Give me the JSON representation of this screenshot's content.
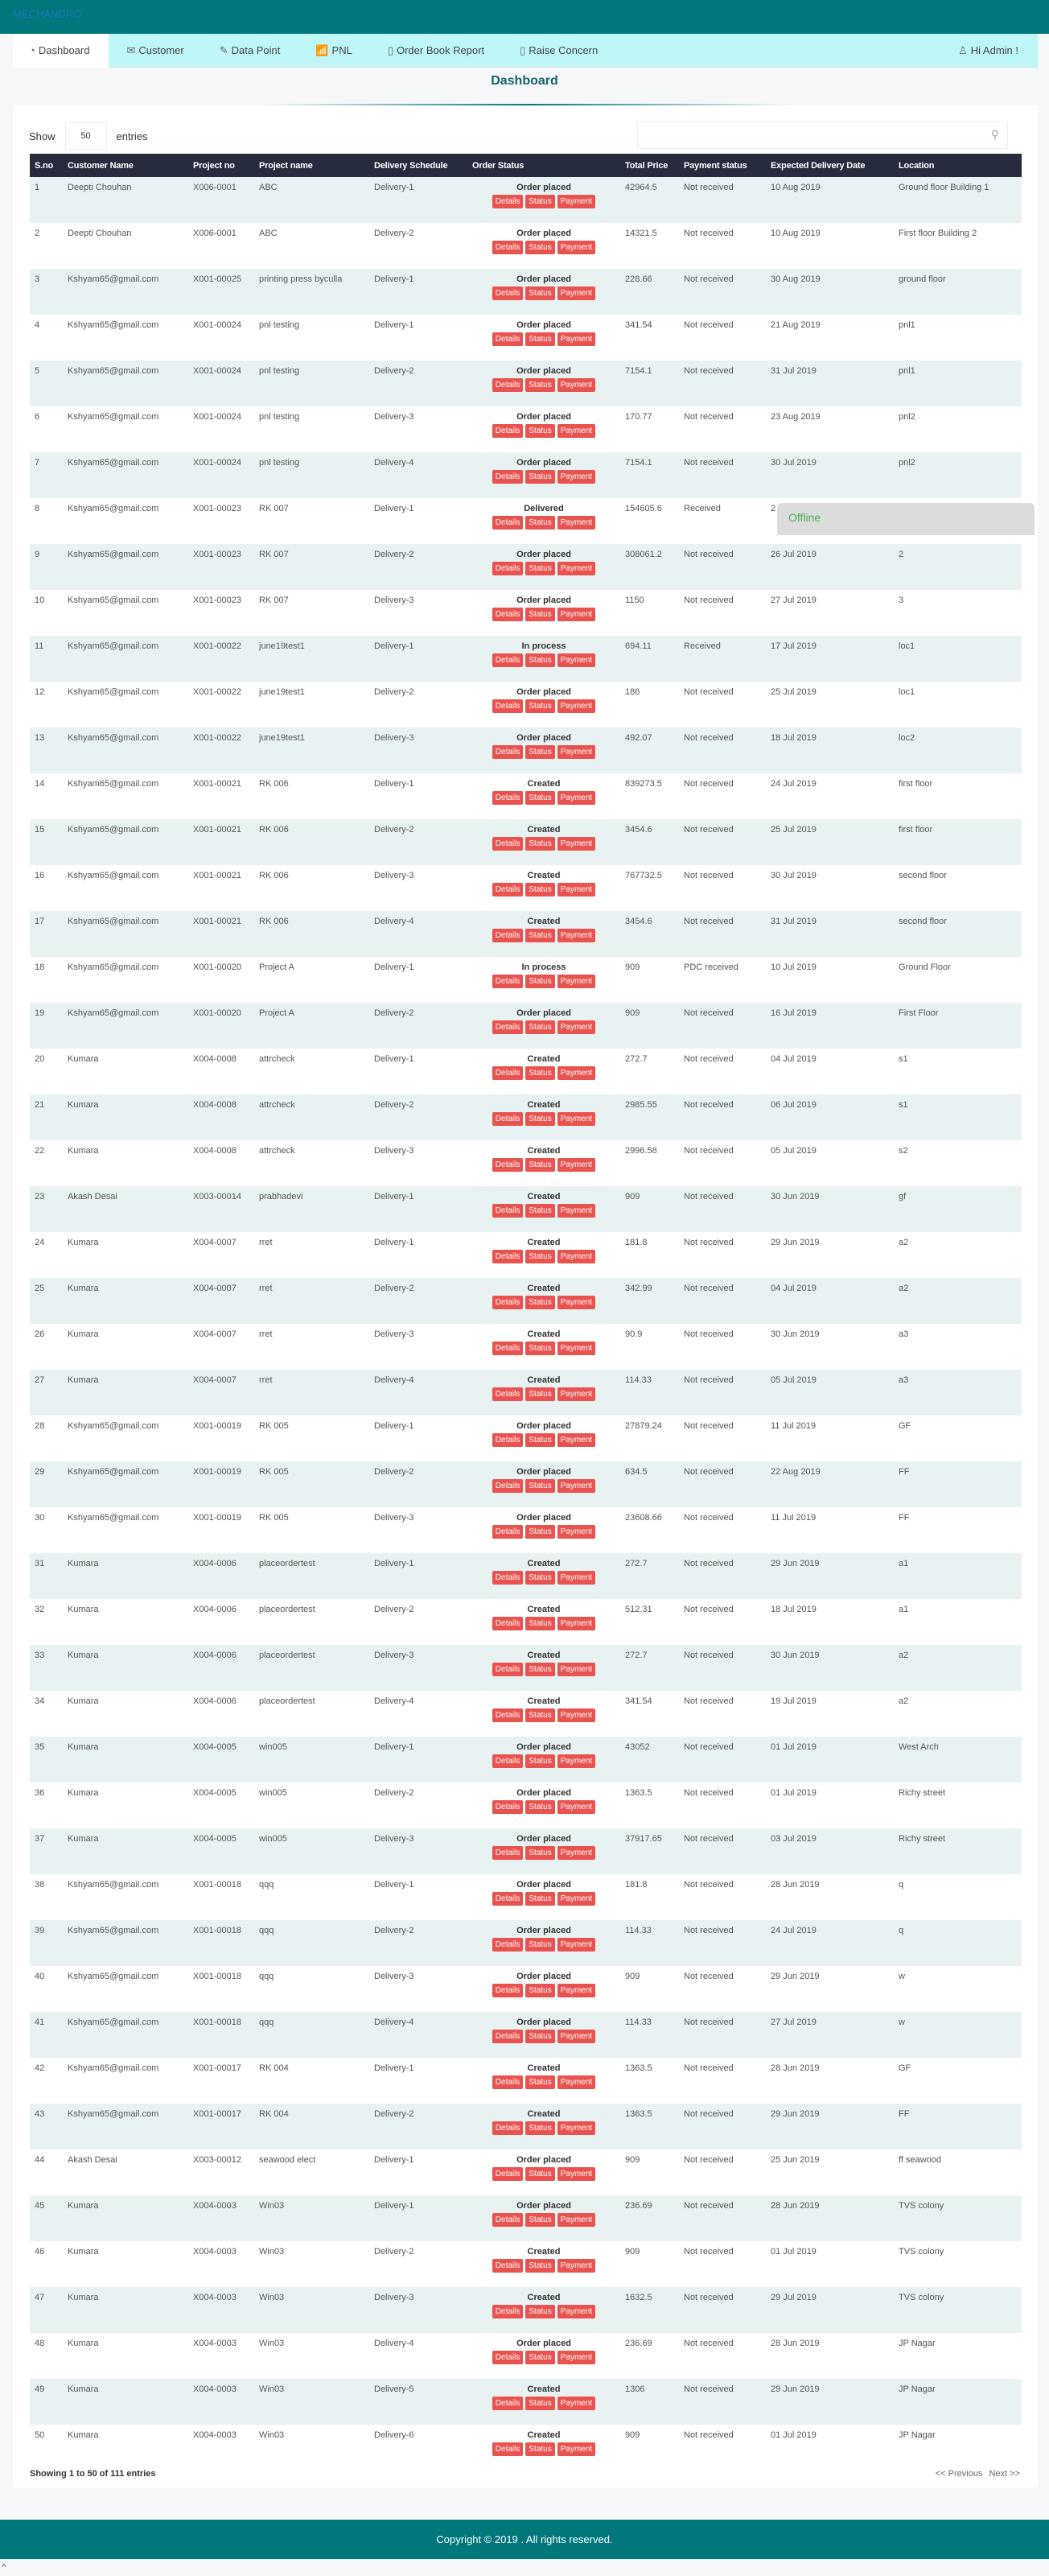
{
  "app": {
    "brand": "MECHANDRO"
  },
  "nav": {
    "items": [
      {
        "label": "Dashboard",
        "icon": "dashboard-icon",
        "glyph": "◔"
      },
      {
        "label": "Customer",
        "icon": "envelope-icon",
        "glyph": "✉"
      },
      {
        "label": "Data Point",
        "icon": "edit-icon",
        "glyph": "✎"
      },
      {
        "label": "PNL",
        "icon": "chart-icon",
        "glyph": "📶"
      },
      {
        "label": "Order Book Report",
        "icon": "book-icon",
        "glyph": "▯"
      },
      {
        "label": "Raise Concern",
        "icon": "book-icon",
        "glyph": "▯"
      }
    ],
    "user": "Hi Admin !"
  },
  "page": {
    "title": "Dashboard"
  },
  "table_controls": {
    "show": "Show",
    "length": "50",
    "entries": "entries",
    "search_placeholder": ""
  },
  "table": {
    "columns": [
      "S.no",
      "Customer Name",
      "Project no",
      "Project name",
      "Delivery Schedule",
      "Order Status",
      "Total Price",
      "Payment status",
      "Expected Delivery Date",
      "Location"
    ],
    "actions": [
      "Details",
      "Status",
      "Payment"
    ],
    "rows": [
      [
        "1",
        "Deepti Chouhan",
        "X006-0001",
        "ABC",
        "Delivery-1",
        "Order placed",
        "42964.5",
        "Not received",
        "10 Aug 2019",
        "Ground floor Building 1"
      ],
      [
        "2",
        "Deepti Chouhan",
        "X006-0001",
        "ABC",
        "Delivery-2",
        "Order placed",
        "14321.5",
        "Not received",
        "10 Aug 2019",
        "First floor Building 2"
      ],
      [
        "3",
        "Kshyam65@gmail.com",
        "X001-00025",
        "printing press byculla",
        "Delivery-1",
        "Order placed",
        "228.66",
        "Not received",
        "30 Aug 2019",
        "ground floor"
      ],
      [
        "4",
        "Kshyam65@gmail.com",
        "X001-00024",
        "pnl testing",
        "Delivery-1",
        "Order placed",
        "341.54",
        "Not received",
        "21 Aug 2019",
        "pnl1"
      ],
      [
        "5",
        "Kshyam65@gmail.com",
        "X001-00024",
        "pnl testing",
        "Delivery-2",
        "Order placed",
        "7154.1",
        "Not received",
        "31 Jul 2019",
        "pnl1"
      ],
      [
        "6",
        "Kshyam65@gmail.com",
        "X001-00024",
        "pnl testing",
        "Delivery-3",
        "Order placed",
        "170.77",
        "Not received",
        "23 Aug 2019",
        "pnl2"
      ],
      [
        "7",
        "Kshyam65@gmail.com",
        "X001-00024",
        "pnl testing",
        "Delivery-4",
        "Order placed",
        "7154.1",
        "Not received",
        "30 Jul 2019",
        "pnl2"
      ],
      [
        "8",
        "Kshyam65@gmail.com",
        "X001-00023",
        "RK 007",
        "Delivery-1",
        "Delivered",
        "154605.6",
        "Received",
        "2",
        ""
      ],
      [
        "9",
        "Kshyam65@gmail.com",
        "X001-00023",
        "RK 007",
        "Delivery-2",
        "Order placed",
        "308061.2",
        "Not received",
        "26 Jul 2019",
        "2"
      ],
      [
        "10",
        "Kshyam65@gmail.com",
        "X001-00023",
        "RK 007",
        "Delivery-3",
        "Order placed",
        "1150",
        "Not received",
        "27 Jul 2019",
        "3"
      ],
      [
        "11",
        "Kshyam65@gmail.com",
        "X001-00022",
        "june19test1",
        "Delivery-1",
        "In process",
        "694.11",
        "Received",
        "17 Jul 2019",
        "loc1"
      ],
      [
        "12",
        "Kshyam65@gmail.com",
        "X001-00022",
        "june19test1",
        "Delivery-2",
        "Order placed",
        "186",
        "Not received",
        "25 Jul 2019",
        "loc1"
      ],
      [
        "13",
        "Kshyam65@gmail.com",
        "X001-00022",
        "june19test1",
        "Delivery-3",
        "Order placed",
        "492.07",
        "Not received",
        "18 Jul 2019",
        "loc2"
      ],
      [
        "14",
        "Kshyam65@gmail.com",
        "X001-00021",
        "RK 006",
        "Delivery-1",
        "Created",
        "839273.5",
        "Not received",
        "24 Jul 2019",
        "first floor"
      ],
      [
        "15",
        "Kshyam65@gmail.com",
        "X001-00021",
        "RK 006",
        "Delivery-2",
        "Created",
        "3454.6",
        "Not received",
        "25 Jul 2019",
        "first floor"
      ],
      [
        "16",
        "Kshyam65@gmail.com",
        "X001-00021",
        "RK 006",
        "Delivery-3",
        "Created",
        "767732.5",
        "Not received",
        "30 Jul 2019",
        "second floor"
      ],
      [
        "17",
        "Kshyam65@gmail.com",
        "X001-00021",
        "RK 006",
        "Delivery-4",
        "Created",
        "3454.6",
        "Not received",
        "31 Jul 2019",
        "second floor"
      ],
      [
        "18",
        "Kshyam65@gmail.com",
        "X001-00020",
        "Project A",
        "Delivery-1",
        "In process",
        "909",
        "PDC received",
        "10 Jul 2019",
        "Ground Floor"
      ],
      [
        "19",
        "Kshyam65@gmail.com",
        "X001-00020",
        "Project A",
        "Delivery-2",
        "Order placed",
        "909",
        "Not received",
        "16 Jul 2019",
        "First Floor"
      ],
      [
        "20",
        "Kumara",
        "X004-0008",
        "attrcheck",
        "Delivery-1",
        "Created",
        "272.7",
        "Not received",
        "04 Jul 2019",
        "s1"
      ],
      [
        "21",
        "Kumara",
        "X004-0008",
        "attrcheck",
        "Delivery-2",
        "Created",
        "2985.55",
        "Not received",
        "06 Jul 2019",
        "s1"
      ],
      [
        "22",
        "Kumara",
        "X004-0008",
        "attrcheck",
        "Delivery-3",
        "Created",
        "2996.58",
        "Not received",
        "05 Jul 2019",
        "s2"
      ],
      [
        "23",
        "Akash Desai",
        "X003-00014",
        "prabhadevi",
        "Delivery-1",
        "Created",
        "909",
        "Not received",
        "30 Jun 2019",
        "gf"
      ],
      [
        "24",
        "Kumara",
        "X004-0007",
        "rret",
        "Delivery-1",
        "Created",
        "181.8",
        "Not received",
        "29 Jun 2019",
        "a2"
      ],
      [
        "25",
        "Kumara",
        "X004-0007",
        "rret",
        "Delivery-2",
        "Created",
        "342.99",
        "Not received",
        "04 Jul 2019",
        "a2"
      ],
      [
        "26",
        "Kumara",
        "X004-0007",
        "rret",
        "Delivery-3",
        "Created",
        "90.9",
        "Not received",
        "30 Jun 2019",
        "a3"
      ],
      [
        "27",
        "Kumara",
        "X004-0007",
        "rret",
        "Delivery-4",
        "Created",
        "114.33",
        "Not received",
        "05 Jul 2019",
        "a3"
      ],
      [
        "28",
        "Kshyam65@gmail.com",
        "X001-00019",
        "RK 005",
        "Delivery-1",
        "Order placed",
        "27879.24",
        "Not received",
        "11 Jul 2019",
        "GF"
      ],
      [
        "29",
        "Kshyam65@gmail.com",
        "X001-00019",
        "RK 005",
        "Delivery-2",
        "Order placed",
        "634.5",
        "Not received",
        "22 Aug 2019",
        "FF"
      ],
      [
        "30",
        "Kshyam65@gmail.com",
        "X001-00019",
        "RK 005",
        "Delivery-3",
        "Order placed",
        "23608.66",
        "Not received",
        "11 Jul 2019",
        "FF"
      ],
      [
        "31",
        "Kumara",
        "X004-0006",
        "placeordertest",
        "Delivery-1",
        "Created",
        "272.7",
        "Not received",
        "29 Jun 2019",
        "a1"
      ],
      [
        "32",
        "Kumara",
        "X004-0006",
        "placeordertest",
        "Delivery-2",
        "Created",
        "512.31",
        "Not received",
        "18 Jul 2019",
        "a1"
      ],
      [
        "33",
        "Kumara",
        "X004-0006",
        "placeordertest",
        "Delivery-3",
        "Created",
        "272.7",
        "Not received",
        "30 Jun 2019",
        "a2"
      ],
      [
        "34",
        "Kumara",
        "X004-0006",
        "placeordertest",
        "Delivery-4",
        "Created",
        "341.54",
        "Not received",
        "19 Jul 2019",
        "a2"
      ],
      [
        "35",
        "Kumara",
        "X004-0005",
        "win005",
        "Delivery-1",
        "Order placed",
        "43052",
        "Not received",
        "01 Jul 2019",
        "West Arch"
      ],
      [
        "36",
        "Kumara",
        "X004-0005",
        "win005",
        "Delivery-2",
        "Order placed",
        "1363.5",
        "Not received",
        "01 Jul 2019",
        "Richy street"
      ],
      [
        "37",
        "Kumara",
        "X004-0005",
        "win005",
        "Delivery-3",
        "Order placed",
        "37917.65",
        "Not received",
        "03 Jul 2019",
        "Richy street"
      ],
      [
        "38",
        "Kshyam65@gmail.com",
        "X001-00018",
        "qqq",
        "Delivery-1",
        "Order placed",
        "181.8",
        "Not received",
        "28 Jun 2019",
        "q"
      ],
      [
        "39",
        "Kshyam65@gmail.com",
        "X001-00018",
        "qqq",
        "Delivery-2",
        "Order placed",
        "114.33",
        "Not received",
        "24 Jul 2019",
        "q"
      ],
      [
        "40",
        "Kshyam65@gmail.com",
        "X001-00018",
        "qqq",
        "Delivery-3",
        "Order placed",
        "909",
        "Not received",
        "29 Jun 2019",
        "w"
      ],
      [
        "41",
        "Kshyam65@gmail.com",
        "X001-00018",
        "qqq",
        "Delivery-4",
        "Order placed",
        "114.33",
        "Not received",
        "27 Jul 2019",
        "w"
      ],
      [
        "42",
        "Kshyam65@gmail.com",
        "X001-00017",
        "RK 004",
        "Delivery-1",
        "Created",
        "1363.5",
        "Not received",
        "28 Jun 2019",
        "GF"
      ],
      [
        "43",
        "Kshyam65@gmail.com",
        "X001-00017",
        "RK 004",
        "Delivery-2",
        "Created",
        "1363.5",
        "Not received",
        "29 Jun 2019",
        "FF"
      ],
      [
        "44",
        "Akash Desai",
        "X003-00012",
        "seawood elect",
        "Delivery-1",
        "Order placed",
        "909",
        "Not received",
        "25 Jun 2019",
        "ff seawood"
      ],
      [
        "45",
        "Kumara",
        "X004-0003",
        "Win03",
        "Delivery-1",
        "Order placed",
        "236.69",
        "Not received",
        "28 Jun 2019",
        "TVS colony"
      ],
      [
        "46",
        "Kumara",
        "X004-0003",
        "Win03",
        "Delivery-2",
        "Created",
        "909",
        "Not received",
        "01 Jul 2019",
        "TVS colony"
      ],
      [
        "47",
        "Kumara",
        "X004-0003",
        "Win03",
        "Delivery-3",
        "Created",
        "1632.5",
        "Not received",
        "29 Jul 2019",
        "TVS colony"
      ],
      [
        "48",
        "Kumara",
        "X004-0003",
        "Win03",
        "Delivery-4",
        "Order placed",
        "236.69",
        "Not received",
        "28 Jun 2019",
        "JP Nagar"
      ],
      [
        "49",
        "Kumara",
        "X004-0003",
        "Win03",
        "Delivery-5",
        "Created",
        "1306",
        "Not received",
        "29 Jun 2019",
        "JP Nagar"
      ],
      [
        "50",
        "Kumara",
        "X004-0003",
        "Win03",
        "Delivery-6",
        "Created",
        "909",
        "Not received",
        "01 Jul 2019",
        "JP Nagar"
      ]
    ]
  },
  "pagination": {
    "info": "Showing 1 to 50 of 111 entries",
    "prev": "<<  Previous",
    "next": "Next  >>"
  },
  "overlay": {
    "offline": "Offline"
  },
  "footer": {
    "copyright": "Copyright © 2019 . All rights reserved.",
    "to_top": "^"
  },
  "colors": {
    "header": "#00777b",
    "nav": "#bff7f9",
    "table_header": "#262b3e",
    "action_button": "#e9534f",
    "offline_text": "#4caf50"
  }
}
